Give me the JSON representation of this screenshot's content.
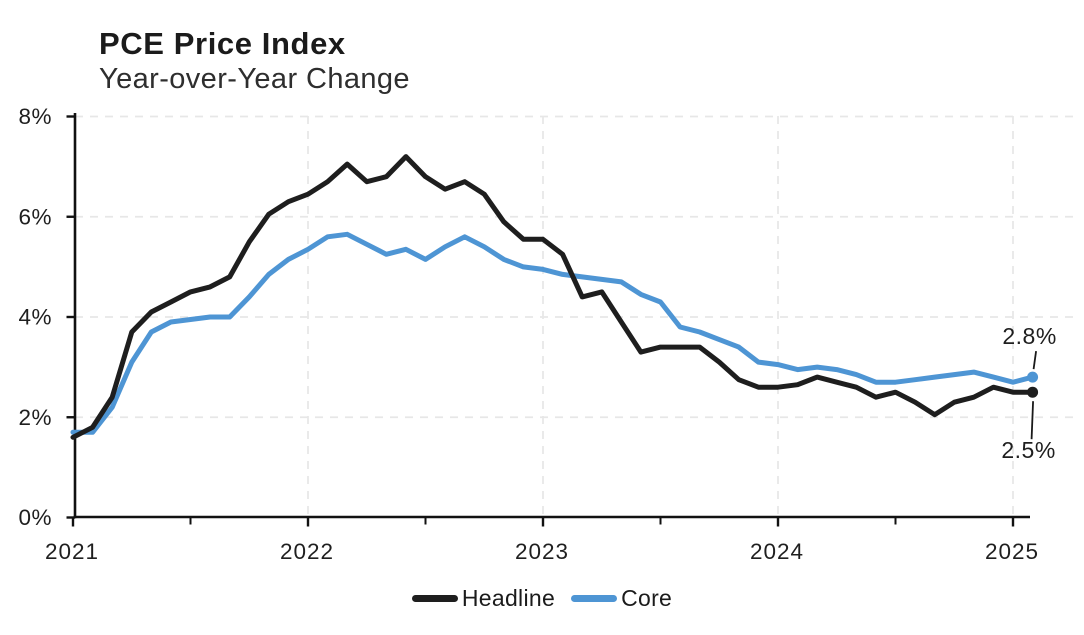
{
  "header": {
    "title": "PCE Price Index",
    "subtitle": "Year-over-Year Change"
  },
  "chart_data": {
    "type": "line",
    "title": "PCE Price Index",
    "subtitle": "Year-over-Year Change",
    "x_unit": "month",
    "x_start": "2021-01",
    "x_end": "2025-02",
    "x_tick_labels": [
      "2021",
      "2022",
      "2023",
      "2024",
      "2025"
    ],
    "y_ticks": [
      0,
      2,
      4,
      6,
      8
    ],
    "y_tick_labels": [
      "0%",
      "2%",
      "4%",
      "6%",
      "8%"
    ],
    "ylim": [
      0,
      8
    ],
    "grid": "dashed",
    "legend_position": "bottom-center",
    "series": [
      {
        "name": "Core",
        "color": "#4E95D4",
        "values": [
          1.7,
          1.7,
          2.2,
          3.1,
          3.7,
          3.9,
          3.95,
          4.0,
          4.0,
          4.4,
          4.85,
          5.15,
          5.35,
          5.6,
          5.65,
          5.45,
          5.25,
          5.35,
          5.15,
          5.4,
          5.6,
          5.4,
          5.15,
          5.0,
          4.95,
          4.85,
          4.8,
          4.75,
          4.7,
          4.45,
          4.3,
          3.8,
          3.7,
          3.55,
          3.4,
          3.1,
          3.05,
          2.95,
          3.0,
          2.95,
          2.85,
          2.7,
          2.7,
          2.75,
          2.8,
          2.85,
          2.9,
          2.8,
          2.7,
          2.8
        ]
      },
      {
        "name": "Headline",
        "color": "#1e1e1e",
        "values": [
          1.6,
          1.8,
          2.4,
          3.7,
          4.1,
          4.3,
          4.5,
          4.6,
          4.8,
          5.5,
          6.05,
          6.3,
          6.45,
          6.7,
          7.05,
          6.7,
          6.8,
          7.2,
          6.8,
          6.55,
          6.7,
          6.45,
          5.9,
          5.55,
          5.55,
          5.25,
          4.4,
          4.5,
          3.9,
          3.3,
          3.4,
          3.4,
          3.4,
          3.1,
          2.75,
          2.6,
          2.6,
          2.65,
          2.8,
          2.7,
          2.6,
          2.4,
          2.5,
          2.3,
          2.05,
          2.3,
          2.4,
          2.6,
          2.5,
          2.5
        ]
      }
    ],
    "end_labels": [
      {
        "series": "Core",
        "text": "2.8%",
        "placement": "above"
      },
      {
        "series": "Headline",
        "text": "2.5%",
        "placement": "below"
      }
    ]
  },
  "legend": {
    "items": [
      {
        "label": "Headline",
        "color": "#1e1e1e"
      },
      {
        "label": "Core",
        "color": "#4E95D4"
      }
    ]
  }
}
